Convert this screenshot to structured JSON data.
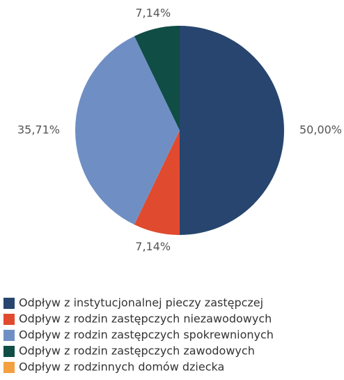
{
  "chart_data": {
    "type": "pie",
    "categories": [
      "Odpływ z instytucjonalnej pieczy zastępczej",
      "Odpływ z rodzin zastępczych niezawodowych",
      "Odpływ z rodzin zastępczych spokrewnionych",
      "Odpływ z rodzin zastępczych zawodowych",
      "Odpływ z rodzinnych domów dziecka"
    ],
    "values": [
      50,
      7.14,
      35.71,
      7.14,
      0
    ],
    "value_labels": [
      "50,00%",
      "7,14%",
      "35,71%",
      "7,14%",
      null
    ],
    "colors": [
      "#27456e",
      "#e04a2e",
      "#6f8fc4",
      "#0f4d45",
      "#f5a040"
    ],
    "legend": "bottom"
  }
}
